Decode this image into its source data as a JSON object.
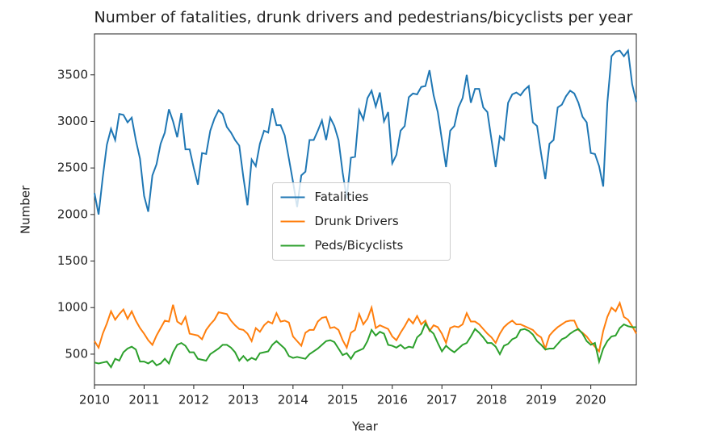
{
  "chart_data": {
    "type": "line",
    "title": "Number of fatalities, drunk drivers and pedestrians/bicyclists per year",
    "x_label": "Year",
    "y_label": "Number",
    "x": [
      2010,
      2010.083,
      2010.167,
      2010.25,
      2010.333,
      2010.417,
      2010.5,
      2010.583,
      2010.667,
      2010.75,
      2010.833,
      2010.917,
      2011,
      2011.083,
      2011.167,
      2011.25,
      2011.333,
      2011.417,
      2011.5,
      2011.583,
      2011.667,
      2011.75,
      2011.833,
      2011.917,
      2012,
      2012.083,
      2012.167,
      2012.25,
      2012.333,
      2012.417,
      2012.5,
      2012.583,
      2012.667,
      2012.75,
      2012.833,
      2012.917,
      2013,
      2013.083,
      2013.167,
      2013.25,
      2013.333,
      2013.417,
      2013.5,
      2013.583,
      2013.667,
      2013.75,
      2013.833,
      2013.917,
      2014,
      2014.083,
      2014.167,
      2014.25,
      2014.333,
      2014.417,
      2014.5,
      2014.583,
      2014.667,
      2014.75,
      2014.833,
      2014.917,
      2015,
      2015.083,
      2015.167,
      2015.25,
      2015.333,
      2015.417,
      2015.5,
      2015.583,
      2015.667,
      2015.75,
      2015.833,
      2015.917,
      2016,
      2016.083,
      2016.167,
      2016.25,
      2016.333,
      2016.417,
      2016.5,
      2016.583,
      2016.667,
      2016.75,
      2016.833,
      2016.917,
      2017,
      2017.083,
      2017.167,
      2017.25,
      2017.333,
      2017.417,
      2017.5,
      2017.583,
      2017.667,
      2017.75,
      2017.833,
      2017.917,
      2018,
      2018.083,
      2018.167,
      2018.25,
      2018.333,
      2018.417,
      2018.5,
      2018.583,
      2018.667,
      2018.75,
      2018.833,
      2018.917,
      2019,
      2019.083,
      2019.167,
      2019.25,
      2019.333,
      2019.417,
      2019.5,
      2019.583,
      2019.667,
      2019.75,
      2019.833,
      2019.917,
      2020,
      2020.083,
      2020.167,
      2020.25,
      2020.333,
      2020.417,
      2020.5,
      2020.583,
      2020.667,
      2020.75,
      2020.833,
      2020.917
    ],
    "series": [
      {
        "name": "Fatalities",
        "color": "#1f77b4",
        "values": [
          2230,
          2000,
          2400,
          2750,
          2920,
          2800,
          3080,
          3070,
          2990,
          3040,
          2800,
          2600,
          2200,
          2030,
          2420,
          2540,
          2760,
          2880,
          3130,
          3000,
          2830,
          3090,
          2700,
          2700,
          2500,
          2320,
          2660,
          2650,
          2900,
          3030,
          3120,
          3080,
          2940,
          2880,
          2800,
          2740,
          2400,
          2100,
          2590,
          2520,
          2760,
          2900,
          2880,
          3140,
          2960,
          2960,
          2850,
          2600,
          2350,
          2080,
          2420,
          2460,
          2800,
          2800,
          2900,
          3010,
          2800,
          3040,
          2950,
          2800,
          2450,
          2170,
          2610,
          2620,
          3120,
          3020,
          3250,
          3330,
          3160,
          3310,
          3000,
          3100,
          2550,
          2640,
          2900,
          2950,
          3260,
          3300,
          3290,
          3370,
          3380,
          3550,
          3280,
          3100,
          2800,
          2510,
          2900,
          2950,
          3150,
          3250,
          3500,
          3200,
          3350,
          3350,
          3150,
          3100,
          2800,
          2510,
          2840,
          2800,
          3200,
          3290,
          3310,
          3280,
          3340,
          3380,
          2990,
          2950,
          2650,
          2380,
          2760,
          2800,
          3150,
          3180,
          3270,
          3330,
          3300,
          3200,
          3050,
          2990,
          2660,
          2650,
          2520,
          2300,
          3200,
          3700,
          3750,
          3760,
          3700,
          3760,
          3400,
          3210
        ]
      },
      {
        "name": "Drunk Drivers",
        "color": "#ff7f0e",
        "values": [
          640,
          570,
          720,
          830,
          960,
          870,
          930,
          980,
          880,
          960,
          860,
          780,
          720,
          650,
          600,
          700,
          780,
          860,
          850,
          1030,
          850,
          820,
          900,
          720,
          710,
          700,
          660,
          760,
          820,
          870,
          950,
          940,
          930,
          860,
          810,
          770,
          760,
          720,
          640,
          780,
          740,
          810,
          850,
          830,
          940,
          850,
          860,
          840,
          690,
          640,
          590,
          730,
          760,
          760,
          850,
          890,
          900,
          780,
          790,
          760,
          650,
          570,
          730,
          760,
          930,
          820,
          880,
          1000,
          780,
          810,
          790,
          770,
          690,
          650,
          730,
          800,
          880,
          830,
          910,
          820,
          860,
          750,
          810,
          790,
          720,
          620,
          780,
          800,
          790,
          820,
          940,
          850,
          850,
          820,
          770,
          720,
          680,
          620,
          720,
          790,
          830,
          860,
          820,
          820,
          800,
          780,
          760,
          710,
          680,
          560,
          700,
          750,
          790,
          820,
          850,
          860,
          860,
          760,
          730,
          690,
          630,
          580,
          530,
          750,
          900,
          1000,
          960,
          1050,
          900,
          870,
          800,
          720
        ]
      },
      {
        "name": "Peds/Bicyclists",
        "color": "#2ca02c",
        "values": [
          410,
          400,
          410,
          420,
          360,
          450,
          430,
          520,
          560,
          580,
          550,
          420,
          420,
          400,
          430,
          380,
          400,
          450,
          400,
          520,
          600,
          620,
          590,
          520,
          520,
          450,
          440,
          430,
          500,
          530,
          560,
          600,
          600,
          570,
          520,
          430,
          480,
          430,
          460,
          440,
          510,
          520,
          530,
          600,
          640,
          600,
          560,
          480,
          460,
          470,
          460,
          450,
          500,
          530,
          560,
          600,
          640,
          650,
          630,
          560,
          490,
          510,
          450,
          520,
          540,
          560,
          640,
          760,
          700,
          740,
          720,
          600,
          590,
          570,
          600,
          560,
          580,
          570,
          680,
          720,
          830,
          760,
          720,
          620,
          530,
          590,
          550,
          520,
          560,
          600,
          620,
          690,
          770,
          730,
          680,
          620,
          620,
          580,
          500,
          590,
          610,
          660,
          680,
          760,
          770,
          750,
          710,
          640,
          600,
          550,
          560,
          560,
          610,
          660,
          680,
          720,
          750,
          770,
          720,
          640,
          600,
          620,
          420,
          560,
          640,
          690,
          700,
          780,
          820,
          800,
          790,
          790
        ]
      }
    ],
    "xlim": [
      2010,
      2020.917
    ],
    "xticks": [
      2010,
      2011,
      2012,
      2013,
      2014,
      2015,
      2016,
      2017,
      2018,
      2019,
      2020
    ],
    "ylim": [
      170,
      3940
    ],
    "yticks": [
      500,
      1000,
      1500,
      2000,
      2500,
      3000,
      3500
    ],
    "legend": "center"
  }
}
